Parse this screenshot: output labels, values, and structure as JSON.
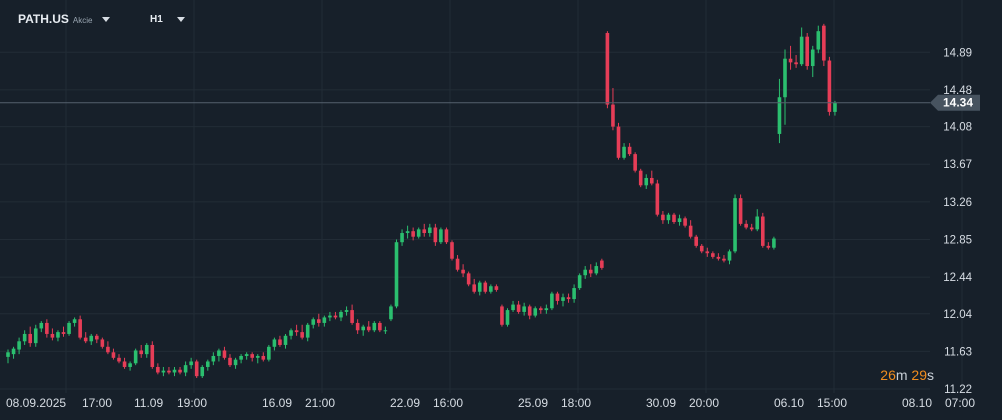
{
  "toolbar": {
    "symbol": "PATH.US",
    "asset_type": "Akcie",
    "timeframe": "H1"
  },
  "countdown": {
    "minutes": "26",
    "m": "m",
    "seconds": "29",
    "s": "s"
  },
  "colors": {
    "up": "#2bbf6f",
    "down": "#e63d57",
    "grid": "#222c36",
    "price_line": "#55616d",
    "price_tag": "#47535f"
  },
  "chart_data": {
    "type": "candlestick",
    "current_price": 14.34,
    "current_price_label": "14.34",
    "ylim": [
      11.22,
      15.22
    ],
    "y_ticks": [
      "14.89",
      "14.48",
      "14.08",
      "13.67",
      "13.26",
      "12.85",
      "12.44",
      "12.04",
      "11.63",
      "11.22"
    ],
    "x_labels": [
      "08.09.2025",
      "17:00",
      "11.09",
      "19:00",
      "16.09",
      "21:00",
      "22.09",
      "16:00",
      "25.09",
      "18:00",
      "30.09",
      "20:00",
      "06.10",
      "15:00",
      "08.10",
      "07:00"
    ],
    "grid": true,
    "candles": [
      {
        "i": 0,
        "o": 11.57,
        "h": 11.65,
        "l": 11.5,
        "c": 11.62
      },
      {
        "i": 1,
        "o": 11.6,
        "h": 11.68,
        "l": 11.55,
        "c": 11.66
      },
      {
        "i": 2,
        "o": 11.65,
        "h": 11.78,
        "l": 11.6,
        "c": 11.74
      },
      {
        "i": 3,
        "o": 11.74,
        "h": 11.86,
        "l": 11.7,
        "c": 11.82
      },
      {
        "i": 4,
        "o": 11.82,
        "h": 11.9,
        "l": 11.68,
        "c": 11.72
      },
      {
        "i": 5,
        "o": 11.72,
        "h": 11.92,
        "l": 11.68,
        "c": 11.88
      },
      {
        "i": 6,
        "o": 11.88,
        "h": 11.96,
        "l": 11.84,
        "c": 11.94
      },
      {
        "i": 7,
        "o": 11.94,
        "h": 11.98,
        "l": 11.78,
        "c": 11.82
      },
      {
        "i": 8,
        "o": 11.82,
        "h": 11.88,
        "l": 11.75,
        "c": 11.78
      },
      {
        "i": 9,
        "o": 11.78,
        "h": 11.86,
        "l": 11.74,
        "c": 11.84
      },
      {
        "i": 10,
        "o": 11.84,
        "h": 11.9,
        "l": 11.79,
        "c": 11.82
      },
      {
        "i": 11,
        "o": 11.82,
        "h": 11.96,
        "l": 11.8,
        "c": 11.94
      },
      {
        "i": 12,
        "o": 11.94,
        "h": 12.0,
        "l": 11.9,
        "c": 11.98
      },
      {
        "i": 13,
        "o": 11.98,
        "h": 12.02,
        "l": 11.76,
        "c": 11.78
      },
      {
        "i": 14,
        "o": 11.78,
        "h": 11.84,
        "l": 11.72,
        "c": 11.74
      },
      {
        "i": 15,
        "o": 11.74,
        "h": 11.82,
        "l": 11.7,
        "c": 11.8
      },
      {
        "i": 16,
        "o": 11.8,
        "h": 11.82,
        "l": 11.72,
        "c": 11.76
      },
      {
        "i": 17,
        "o": 11.76,
        "h": 11.78,
        "l": 11.66,
        "c": 11.68
      },
      {
        "i": 18,
        "o": 11.68,
        "h": 11.74,
        "l": 11.6,
        "c": 11.62
      },
      {
        "i": 19,
        "o": 11.62,
        "h": 11.66,
        "l": 11.54,
        "c": 11.56
      },
      {
        "i": 20,
        "o": 11.56,
        "h": 11.6,
        "l": 11.5,
        "c": 11.52
      },
      {
        "i": 21,
        "o": 11.52,
        "h": 11.56,
        "l": 11.44,
        "c": 11.46
      },
      {
        "i": 22,
        "o": 11.46,
        "h": 11.52,
        "l": 11.42,
        "c": 11.5
      },
      {
        "i": 23,
        "o": 11.5,
        "h": 11.66,
        "l": 11.48,
        "c": 11.64
      },
      {
        "i": 24,
        "o": 11.64,
        "h": 11.7,
        "l": 11.56,
        "c": 11.6
      },
      {
        "i": 25,
        "o": 11.6,
        "h": 11.72,
        "l": 11.56,
        "c": 11.7
      },
      {
        "i": 26,
        "o": 11.7,
        "h": 11.74,
        "l": 11.44,
        "c": 11.46
      },
      {
        "i": 27,
        "o": 11.46,
        "h": 11.5,
        "l": 11.38,
        "c": 11.4
      },
      {
        "i": 28,
        "o": 11.4,
        "h": 11.46,
        "l": 11.36,
        "c": 11.42
      },
      {
        "i": 29,
        "o": 11.42,
        "h": 11.46,
        "l": 11.38,
        "c": 11.4
      },
      {
        "i": 30,
        "o": 11.4,
        "h": 11.46,
        "l": 11.36,
        "c": 11.43
      },
      {
        "i": 31,
        "o": 11.43,
        "h": 11.46,
        "l": 11.38,
        "c": 11.4
      },
      {
        "i": 32,
        "o": 11.4,
        "h": 11.52,
        "l": 11.36,
        "c": 11.48
      },
      {
        "i": 33,
        "o": 11.48,
        "h": 11.56,
        "l": 11.44,
        "c": 11.52
      },
      {
        "i": 34,
        "o": 11.52,
        "h": 11.54,
        "l": 11.34,
        "c": 11.36
      },
      {
        "i": 35,
        "o": 11.36,
        "h": 11.48,
        "l": 11.34,
        "c": 11.46
      },
      {
        "i": 36,
        "o": 11.46,
        "h": 11.54,
        "l": 11.42,
        "c": 11.52
      },
      {
        "i": 37,
        "o": 11.52,
        "h": 11.62,
        "l": 11.48,
        "c": 11.58
      },
      {
        "i": 38,
        "o": 11.58,
        "h": 11.66,
        "l": 11.52,
        "c": 11.64
      },
      {
        "i": 39,
        "o": 11.64,
        "h": 11.68,
        "l": 11.54,
        "c": 11.56
      },
      {
        "i": 40,
        "o": 11.56,
        "h": 11.6,
        "l": 11.46,
        "c": 11.48
      },
      {
        "i": 41,
        "o": 11.48,
        "h": 11.56,
        "l": 11.44,
        "c": 11.54
      },
      {
        "i": 42,
        "o": 11.54,
        "h": 11.6,
        "l": 11.5,
        "c": 11.58
      },
      {
        "i": 43,
        "o": 11.58,
        "h": 11.62,
        "l": 11.54,
        "c": 11.6
      },
      {
        "i": 44,
        "o": 11.6,
        "h": 11.62,
        "l": 11.52,
        "c": 11.56
      },
      {
        "i": 45,
        "o": 11.56,
        "h": 11.6,
        "l": 11.5,
        "c": 11.58
      },
      {
        "i": 46,
        "o": 11.58,
        "h": 11.62,
        "l": 11.52,
        "c": 11.54
      },
      {
        "i": 47,
        "o": 11.54,
        "h": 11.7,
        "l": 11.52,
        "c": 11.68
      },
      {
        "i": 48,
        "o": 11.68,
        "h": 11.78,
        "l": 11.64,
        "c": 11.76
      },
      {
        "i": 49,
        "o": 11.76,
        "h": 11.8,
        "l": 11.68,
        "c": 11.7
      },
      {
        "i": 50,
        "o": 11.7,
        "h": 11.82,
        "l": 11.66,
        "c": 11.8
      },
      {
        "i": 51,
        "o": 11.8,
        "h": 11.88,
        "l": 11.76,
        "c": 11.86
      },
      {
        "i": 52,
        "o": 11.86,
        "h": 11.92,
        "l": 11.8,
        "c": 11.84
      },
      {
        "i": 53,
        "o": 11.84,
        "h": 11.92,
        "l": 11.76,
        "c": 11.78
      },
      {
        "i": 54,
        "o": 11.78,
        "h": 11.94,
        "l": 11.74,
        "c": 11.92
      },
      {
        "i": 55,
        "o": 11.92,
        "h": 12.0,
        "l": 11.88,
        "c": 11.98
      },
      {
        "i": 56,
        "o": 11.98,
        "h": 12.04,
        "l": 11.9,
        "c": 11.94
      },
      {
        "i": 57,
        "o": 11.94,
        "h": 12.02,
        "l": 11.9,
        "c": 12.0
      },
      {
        "i": 58,
        "o": 12.0,
        "h": 12.06,
        "l": 11.96,
        "c": 12.02
      },
      {
        "i": 59,
        "o": 12.02,
        "h": 12.06,
        "l": 11.98,
        "c": 12.0
      },
      {
        "i": 60,
        "o": 12.0,
        "h": 12.08,
        "l": 11.96,
        "c": 12.06
      },
      {
        "i": 61,
        "o": 12.06,
        "h": 12.12,
        "l": 12.02,
        "c": 12.08
      },
      {
        "i": 62,
        "o": 12.08,
        "h": 12.14,
        "l": 11.92,
        "c": 11.94
      },
      {
        "i": 63,
        "o": 11.94,
        "h": 11.98,
        "l": 11.82,
        "c": 11.86
      },
      {
        "i": 64,
        "o": 11.86,
        "h": 11.92,
        "l": 11.8,
        "c": 11.9
      },
      {
        "i": 65,
        "o": 11.9,
        "h": 11.96,
        "l": 11.84,
        "c": 11.86
      },
      {
        "i": 66,
        "o": 11.86,
        "h": 11.96,
        "l": 11.84,
        "c": 11.94
      },
      {
        "i": 67,
        "o": 11.94,
        "h": 11.96,
        "l": 11.84,
        "c": 11.86
      },
      {
        "i": 68,
        "o": 11.86,
        "h": 11.9,
        "l": 11.82,
        "c": 11.86
      },
      {
        "i": 69,
        "o": 11.98,
        "h": 12.14,
        "l": 11.96,
        "c": 12.12
      },
      {
        "i": 70,
        "o": 12.12,
        "h": 12.85,
        "l": 12.1,
        "c": 12.82
      },
      {
        "i": 71,
        "o": 12.82,
        "h": 12.96,
        "l": 12.78,
        "c": 12.92
      },
      {
        "i": 72,
        "o": 12.92,
        "h": 13.0,
        "l": 12.86,
        "c": 12.94
      },
      {
        "i": 73,
        "o": 12.94,
        "h": 12.98,
        "l": 12.84,
        "c": 12.88
      },
      {
        "i": 74,
        "o": 12.88,
        "h": 12.98,
        "l": 12.86,
        "c": 12.96
      },
      {
        "i": 75,
        "o": 12.96,
        "h": 13.02,
        "l": 12.88,
        "c": 12.92
      },
      {
        "i": 76,
        "o": 12.92,
        "h": 13.02,
        "l": 12.88,
        "c": 12.98
      },
      {
        "i": 77,
        "o": 12.98,
        "h": 13.02,
        "l": 12.78,
        "c": 12.82
      },
      {
        "i": 78,
        "o": 12.82,
        "h": 12.98,
        "l": 12.8,
        "c": 12.96
      },
      {
        "i": 79,
        "o": 12.96,
        "h": 12.98,
        "l": 12.8,
        "c": 12.82
      },
      {
        "i": 80,
        "o": 12.82,
        "h": 12.84,
        "l": 12.62,
        "c": 12.64
      },
      {
        "i": 81,
        "o": 12.64,
        "h": 12.68,
        "l": 12.5,
        "c": 12.52
      },
      {
        "i": 82,
        "o": 12.52,
        "h": 12.58,
        "l": 12.44,
        "c": 12.48
      },
      {
        "i": 83,
        "o": 12.48,
        "h": 12.5,
        "l": 12.34,
        "c": 12.36
      },
      {
        "i": 84,
        "o": 12.36,
        "h": 12.42,
        "l": 12.26,
        "c": 12.28
      },
      {
        "i": 85,
        "o": 12.28,
        "h": 12.4,
        "l": 12.24,
        "c": 12.38
      },
      {
        "i": 86,
        "o": 12.38,
        "h": 12.4,
        "l": 12.26,
        "c": 12.28
      },
      {
        "i": 87,
        "o": 12.28,
        "h": 12.36,
        "l": 12.26,
        "c": 12.34
      },
      {
        "i": 88,
        "o": 12.34,
        "h": 12.36,
        "l": 12.28,
        "c": 12.3
      },
      {
        "i": 89,
        "o": 12.12,
        "h": 12.14,
        "l": 11.9,
        "c": 11.92
      },
      {
        "i": 90,
        "o": 11.92,
        "h": 12.1,
        "l": 11.9,
        "c": 12.08
      },
      {
        "i": 91,
        "o": 12.08,
        "h": 12.18,
        "l": 12.06,
        "c": 12.14
      },
      {
        "i": 92,
        "o": 12.14,
        "h": 12.18,
        "l": 12.04,
        "c": 12.06
      },
      {
        "i": 93,
        "o": 12.06,
        "h": 12.16,
        "l": 12.02,
        "c": 12.12
      },
      {
        "i": 94,
        "o": 12.12,
        "h": 12.14,
        "l": 11.98,
        "c": 12.02
      },
      {
        "i": 95,
        "o": 12.02,
        "h": 12.12,
        "l": 12.0,
        "c": 12.1
      },
      {
        "i": 96,
        "o": 12.1,
        "h": 12.12,
        "l": 12.04,
        "c": 12.08
      },
      {
        "i": 97,
        "o": 12.08,
        "h": 12.14,
        "l": 12.04,
        "c": 12.1
      },
      {
        "i": 98,
        "o": 12.1,
        "h": 12.28,
        "l": 12.08,
        "c": 12.26
      },
      {
        "i": 99,
        "o": 12.26,
        "h": 12.28,
        "l": 12.14,
        "c": 12.18
      },
      {
        "i": 100,
        "o": 12.18,
        "h": 12.26,
        "l": 12.12,
        "c": 12.22
      },
      {
        "i": 101,
        "o": 12.22,
        "h": 12.26,
        "l": 12.16,
        "c": 12.2
      },
      {
        "i": 102,
        "o": 12.2,
        "h": 12.36,
        "l": 12.16,
        "c": 12.32
      },
      {
        "i": 103,
        "o": 12.32,
        "h": 12.48,
        "l": 12.3,
        "c": 12.46
      },
      {
        "i": 104,
        "o": 12.46,
        "h": 12.56,
        "l": 12.42,
        "c": 12.52
      },
      {
        "i": 105,
        "o": 12.52,
        "h": 12.58,
        "l": 12.44,
        "c": 12.48
      },
      {
        "i": 106,
        "o": 12.48,
        "h": 12.6,
        "l": 12.46,
        "c": 12.56
      },
      {
        "i": 107,
        "o": 12.62,
        "h": 12.64,
        "l": 12.52,
        "c": 12.54
      },
      {
        "i": 108,
        "o": 15.1,
        "h": 15.12,
        "l": 14.28,
        "c": 14.32
      },
      {
        "i": 109,
        "o": 14.32,
        "h": 14.5,
        "l": 14.04,
        "c": 14.08
      },
      {
        "i": 110,
        "o": 14.08,
        "h": 14.12,
        "l": 13.72,
        "c": 13.74
      },
      {
        "i": 111,
        "o": 13.74,
        "h": 13.9,
        "l": 13.72,
        "c": 13.86
      },
      {
        "i": 112,
        "o": 13.86,
        "h": 13.9,
        "l": 13.76,
        "c": 13.78
      },
      {
        "i": 113,
        "o": 13.78,
        "h": 13.8,
        "l": 13.58,
        "c": 13.6
      },
      {
        "i": 114,
        "o": 13.6,
        "h": 13.62,
        "l": 13.42,
        "c": 13.44
      },
      {
        "i": 115,
        "o": 13.44,
        "h": 13.56,
        "l": 13.4,
        "c": 13.52
      },
      {
        "i": 116,
        "o": 13.52,
        "h": 13.6,
        "l": 13.44,
        "c": 13.46
      },
      {
        "i": 117,
        "o": 13.46,
        "h": 13.5,
        "l": 13.1,
        "c": 13.12
      },
      {
        "i": 118,
        "o": 13.12,
        "h": 13.16,
        "l": 13.02,
        "c": 13.06
      },
      {
        "i": 119,
        "o": 13.06,
        "h": 13.14,
        "l": 13.02,
        "c": 13.12
      },
      {
        "i": 120,
        "o": 13.12,
        "h": 13.14,
        "l": 13.02,
        "c": 13.04
      },
      {
        "i": 121,
        "o": 13.04,
        "h": 13.12,
        "l": 13.0,
        "c": 13.08
      },
      {
        "i": 122,
        "o": 13.08,
        "h": 13.1,
        "l": 12.98,
        "c": 13.0
      },
      {
        "i": 123,
        "o": 13.0,
        "h": 13.06,
        "l": 12.86,
        "c": 12.88
      },
      {
        "i": 124,
        "o": 12.88,
        "h": 12.9,
        "l": 12.76,
        "c": 12.78
      },
      {
        "i": 125,
        "o": 12.78,
        "h": 12.8,
        "l": 12.7,
        "c": 12.72
      },
      {
        "i": 126,
        "o": 12.72,
        "h": 12.76,
        "l": 12.66,
        "c": 12.7
      },
      {
        "i": 127,
        "o": 12.7,
        "h": 12.72,
        "l": 12.64,
        "c": 12.66
      },
      {
        "i": 128,
        "o": 12.66,
        "h": 12.7,
        "l": 12.62,
        "c": 12.64
      },
      {
        "i": 129,
        "o": 12.64,
        "h": 12.68,
        "l": 12.6,
        "c": 12.62
      },
      {
        "i": 130,
        "o": 12.62,
        "h": 12.74,
        "l": 12.58,
        "c": 12.72
      },
      {
        "i": 131,
        "o": 12.72,
        "h": 13.34,
        "l": 12.7,
        "c": 13.3
      },
      {
        "i": 132,
        "o": 13.3,
        "h": 13.34,
        "l": 13.0,
        "c": 13.02
      },
      {
        "i": 133,
        "o": 13.02,
        "h": 13.06,
        "l": 12.96,
        "c": 12.98
      },
      {
        "i": 134,
        "o": 12.98,
        "h": 13.02,
        "l": 12.94,
        "c": 12.96
      },
      {
        "i": 135,
        "o": 12.96,
        "h": 13.18,
        "l": 12.94,
        "c": 13.1
      },
      {
        "i": 136,
        "o": 13.1,
        "h": 13.14,
        "l": 12.76,
        "c": 12.78
      },
      {
        "i": 137,
        "o": 12.78,
        "h": 12.82,
        "l": 12.74,
        "c": 12.76
      },
      {
        "i": 138,
        "o": 12.76,
        "h": 12.88,
        "l": 12.74,
        "c": 12.86
      },
      {
        "i": 139,
        "o": 14.0,
        "h": 14.6,
        "l": 13.9,
        "c": 14.4
      },
      {
        "i": 140,
        "o": 14.4,
        "h": 14.92,
        "l": 14.1,
        "c": 14.82
      },
      {
        "i": 141,
        "o": 14.82,
        "h": 14.96,
        "l": 14.7,
        "c": 14.78
      },
      {
        "i": 142,
        "o": 14.78,
        "h": 14.86,
        "l": 14.72,
        "c": 14.76
      },
      {
        "i": 143,
        "o": 14.76,
        "h": 15.16,
        "l": 14.74,
        "c": 15.06
      },
      {
        "i": 144,
        "o": 15.06,
        "h": 15.1,
        "l": 14.7,
        "c": 14.74
      },
      {
        "i": 145,
        "o": 14.74,
        "h": 14.96,
        "l": 14.62,
        "c": 14.92
      },
      {
        "i": 146,
        "o": 14.92,
        "h": 15.18,
        "l": 14.88,
        "c": 15.12
      },
      {
        "i": 147,
        "o": 15.18,
        "h": 15.2,
        "l": 14.74,
        "c": 14.8
      },
      {
        "i": 148,
        "o": 14.8,
        "h": 14.84,
        "l": 14.2,
        "c": 14.24
      },
      {
        "i": 149,
        "o": 14.24,
        "h": 14.36,
        "l": 14.2,
        "c": 14.34
      }
    ]
  }
}
